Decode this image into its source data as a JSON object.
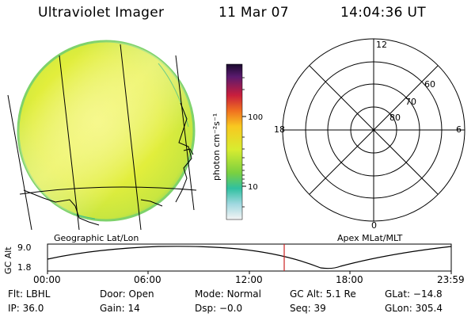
{
  "header": {
    "instrument": "Ultraviolet Imager",
    "date": "11 Mar 07",
    "time": "14:04:36 UT"
  },
  "geo_panel": {
    "label": "Geographic Lat/Lon"
  },
  "colorbar": {
    "unit": "photon cm⁻²s⁻¹",
    "ticks": [
      "100",
      "10"
    ]
  },
  "polar_panel": {
    "label": "Apex MLat/MLT",
    "mlt_labels": {
      "top": "12",
      "left": "18",
      "right": "6",
      "bottom": "0"
    },
    "lat_labels": [
      "60",
      "70",
      "80"
    ]
  },
  "orbit_plot": {
    "ylabel": "GC Alt",
    "yticks": [
      "9.0",
      "1.8"
    ],
    "xticks": [
      "00:00",
      "06:00",
      "12:00",
      "18:00",
      "23:59"
    ],
    "marker_color": "#cc2222"
  },
  "status": {
    "row1": [
      {
        "label": "Flt:",
        "value": "LBHL"
      },
      {
        "label": "Door:",
        "value": "Open"
      },
      {
        "label": "Mode:",
        "value": "Normal"
      },
      {
        "label": "GC Alt:",
        "value": "5.1 Re"
      },
      {
        "label": "GLat:",
        "value": "−14.8"
      }
    ],
    "row2": [
      {
        "label": "IP:",
        "value": "36.0"
      },
      {
        "label": "Gain:",
        "value": "14"
      },
      {
        "label": "Dsp:",
        "value": "−0.0"
      },
      {
        "label": "Seq:",
        "value": "39"
      },
      {
        "label": "GLon:",
        "value": "305.4"
      }
    ]
  }
}
